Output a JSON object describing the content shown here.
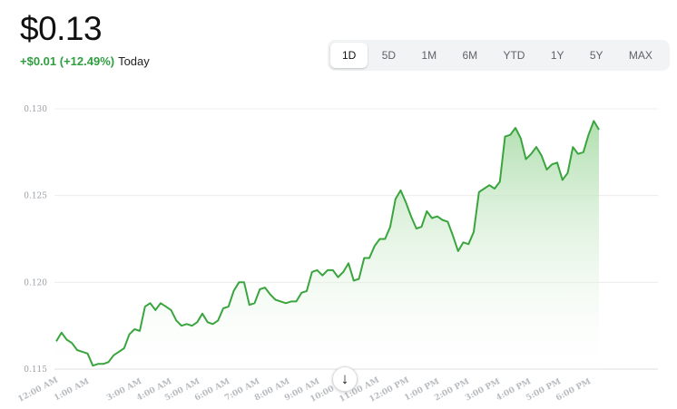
{
  "header": {
    "price": "$0.13",
    "change": "+$0.01 (+12.49%)",
    "period": "Today"
  },
  "ranges": [
    "1D",
    "5D",
    "1M",
    "6M",
    "YTD",
    "1Y",
    "5Y",
    "MAX"
  ],
  "active_range": "1D",
  "colors": {
    "line": "#3aa53f",
    "fill_top": "#a8dba6",
    "grid": "#ececec"
  },
  "scroll_icon": "arrow-down-icon",
  "chart_data": {
    "type": "area",
    "ylim": [
      0.115,
      0.13
    ],
    "yticks": [
      "0.115",
      "0.120",
      "0.125",
      "0.130"
    ],
    "xticks": [
      "12:00 AM",
      "1:00 AM",
      "3:00 AM",
      "4:00 AM",
      "5:00 AM",
      "6:00 AM",
      "7:00 AM",
      "8:00 AM",
      "9:00 AM",
      "10:00 AM",
      "11:00 AM",
      "12:00 PM",
      "1:00 PM",
      "2:00 PM",
      "3:00 PM",
      "4:00 PM",
      "5:00 PM",
      "6:00 PM"
    ],
    "series": [
      {
        "values": [
          0.1166,
          0.1171,
          0.1167,
          0.1165,
          0.1161,
          0.116,
          0.1159,
          0.1152,
          0.1153,
          0.1153,
          0.1154,
          0.1158,
          0.116,
          0.1162,
          0.117,
          0.1173,
          0.1172,
          0.1186,
          0.1188,
          0.1184,
          0.1188,
          0.1186,
          0.1184,
          0.1178,
          0.1175,
          0.1176,
          0.1175,
          0.1177,
          0.1182,
          0.1177,
          0.1176,
          0.1178,
          0.1185,
          0.1186,
          0.1195,
          0.12,
          0.12,
          0.1187,
          0.1188,
          0.1196,
          0.1197,
          0.1193,
          0.119,
          0.1189,
          0.1188,
          0.1189,
          0.1189,
          0.1194,
          0.1195,
          0.1206,
          0.1207,
          0.1204,
          0.1207,
          0.1207,
          0.1203,
          0.1206,
          0.1211,
          0.1201,
          0.1202,
          0.1214,
          0.1214,
          0.1221,
          0.1225,
          0.1225,
          0.1232,
          0.1248,
          0.1253,
          0.1246,
          0.1238,
          0.1231,
          0.1232,
          0.1241,
          0.1237,
          0.1238,
          0.1236,
          0.1235,
          0.1227,
          0.1218,
          0.1223,
          0.1222,
          0.1229,
          0.1252,
          0.1254,
          0.1256,
          0.1254,
          0.1258,
          0.1284,
          0.1285,
          0.1289,
          0.1283,
          0.1271,
          0.1274,
          0.1278,
          0.1273,
          0.1265,
          0.1268,
          0.1269,
          0.1259,
          0.1263,
          0.1278,
          0.1274,
          0.1275,
          0.1285,
          0.1293,
          0.1288
        ]
      }
    ],
    "grid": true,
    "legend": "none"
  }
}
